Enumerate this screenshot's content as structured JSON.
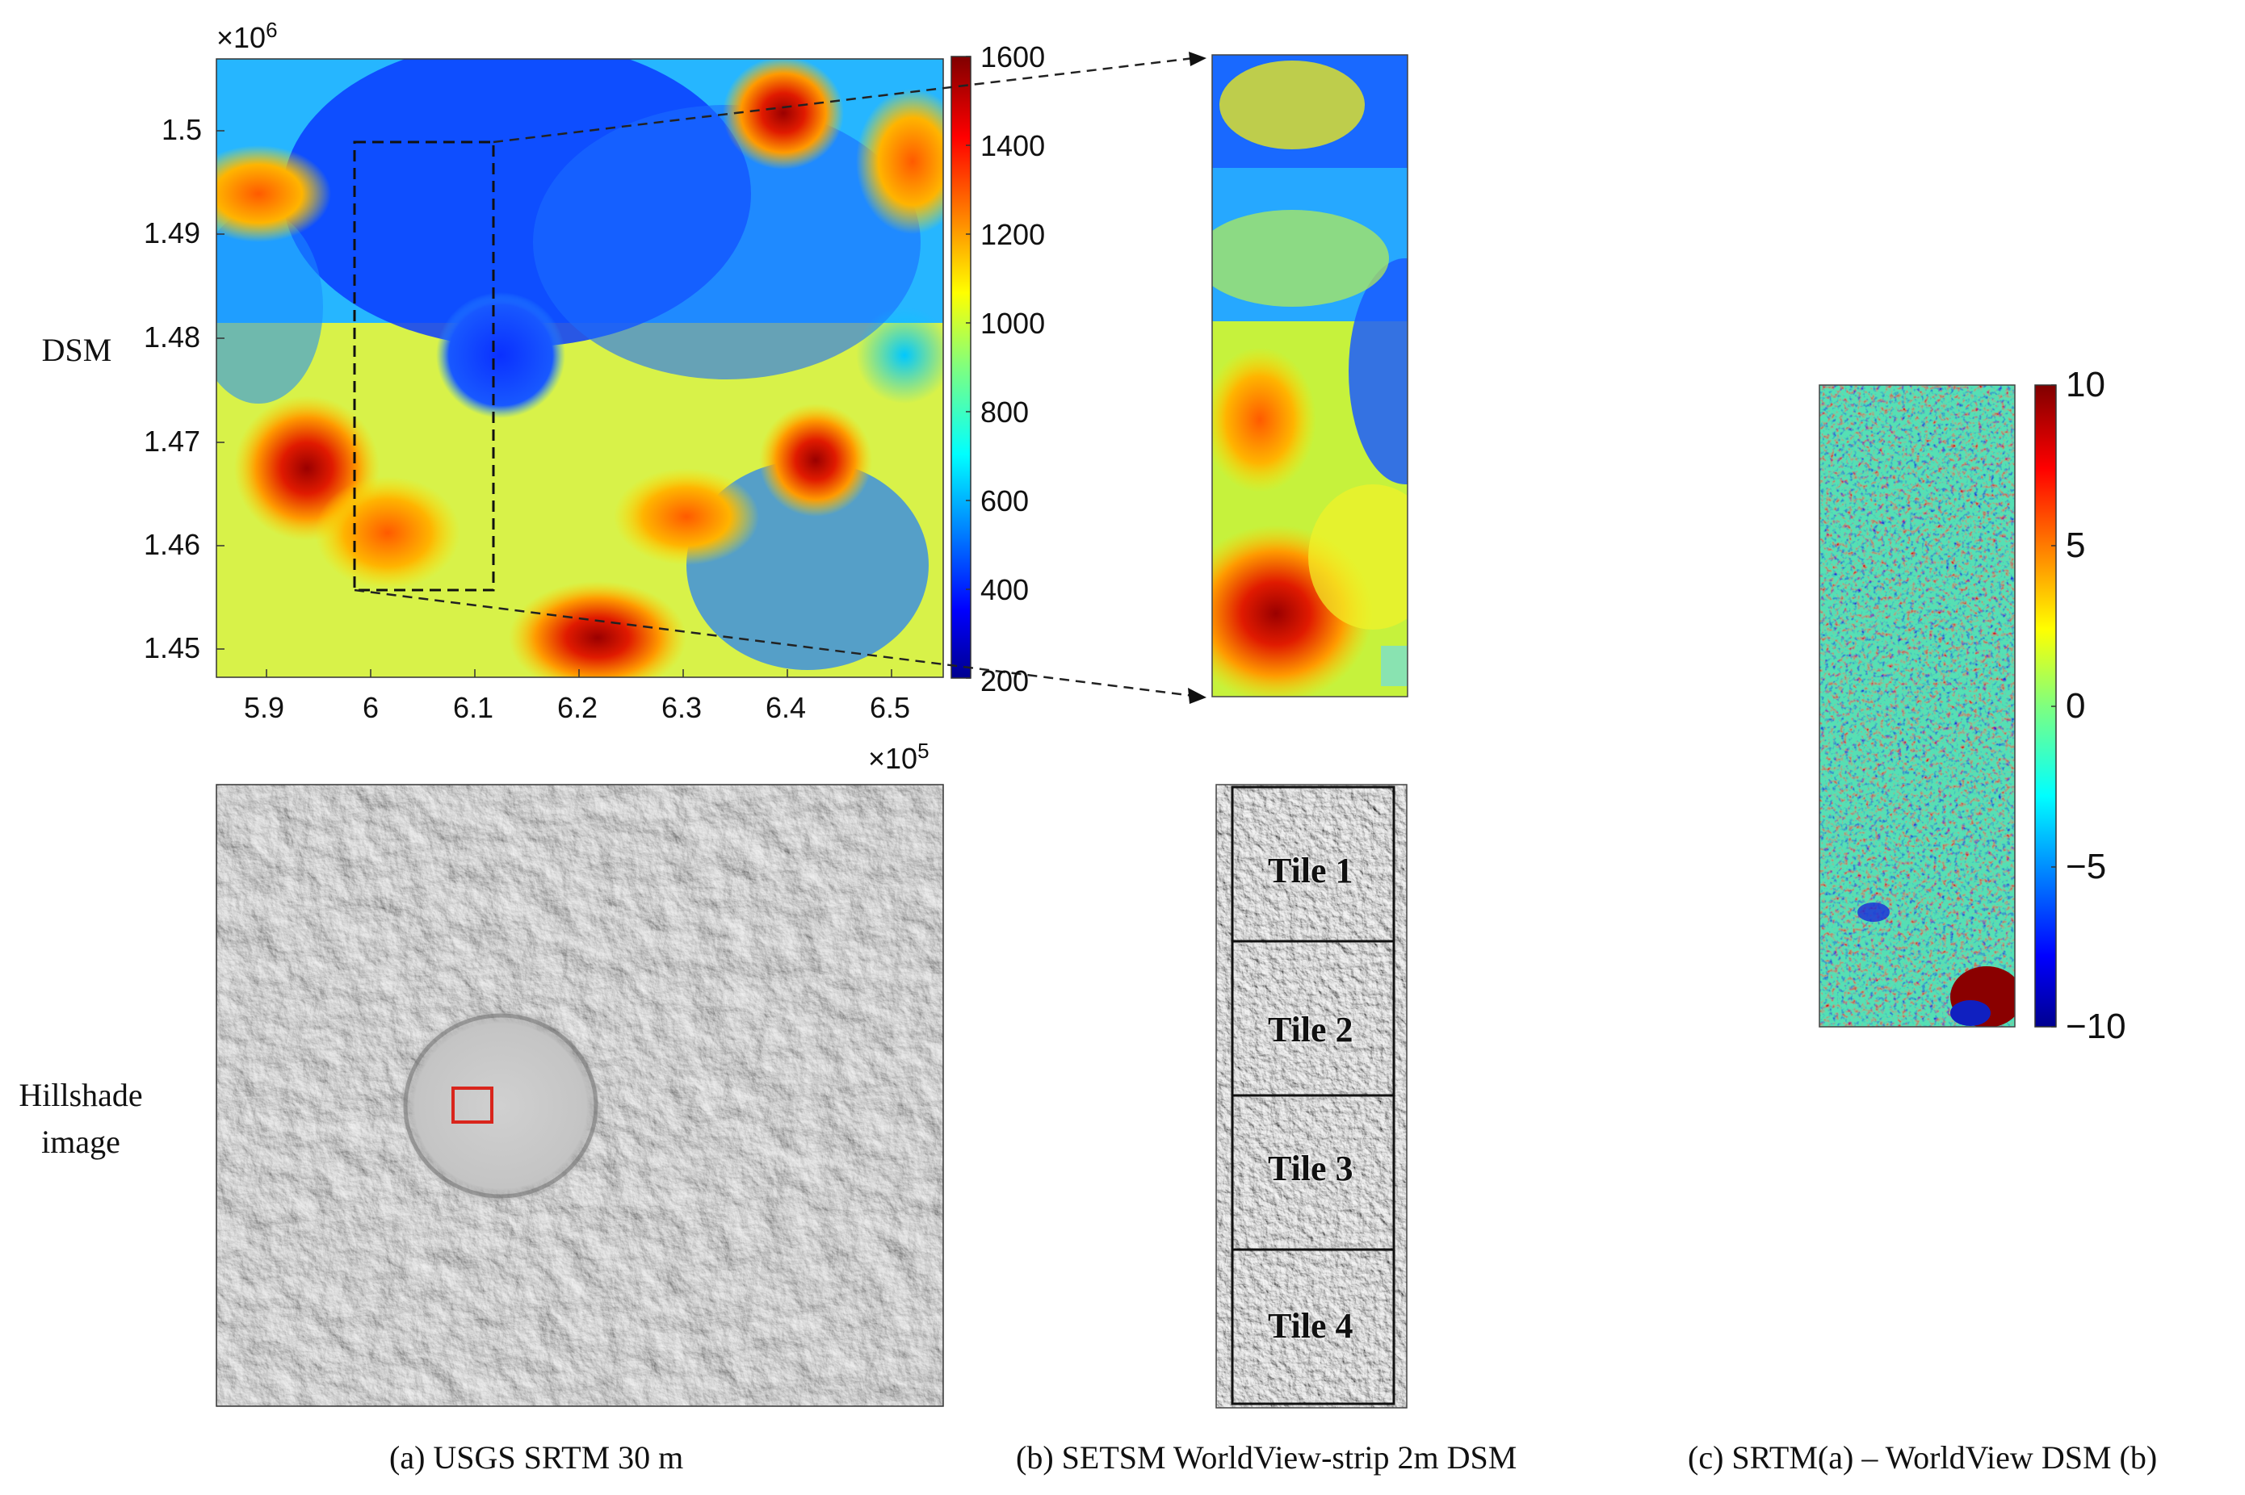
{
  "row_labels": {
    "dsm": "DSM",
    "hillshade_line1": "Hillshade",
    "hillshade_line2": "image"
  },
  "panel_a": {
    "caption": "(a) USGS SRTM 30 m",
    "y_exponent": "×10",
    "y_exponent_power": "6",
    "x_exponent": "×10",
    "x_exponent_power": "5",
    "y_ticks": [
      "1.5",
      "1.49",
      "1.48",
      "1.47",
      "1.46",
      "1.45"
    ],
    "x_ticks": [
      "5.9",
      "6",
      "6.1",
      "6.2",
      "6.3",
      "6.4",
      "6.5"
    ],
    "colorbar_ticks": [
      "1600",
      "1400",
      "1200",
      "1000",
      "800",
      "600",
      "400",
      "200"
    ],
    "colorbar_range": [
      200,
      1600
    ],
    "colorscale": "jet"
  },
  "panel_b": {
    "caption": "(b) SETSM WorldView-strip 2m DSM",
    "tiles": [
      "Tile 1",
      "Tile 2",
      "Tile 3",
      "Tile 4"
    ]
  },
  "panel_c": {
    "caption": "(c) SRTM(a) – WorldView DSM (b)",
    "colorbar_ticks": [
      "10",
      "5",
      "0",
      "−5",
      "−10"
    ],
    "colorbar_range": [
      -10,
      10
    ],
    "colorscale": "jet"
  },
  "colors": {
    "jet_low": "#00008f",
    "jet_mid": "#7fff7f",
    "jet_high": "#800000",
    "highlight_box": "#d9251c",
    "hillshade": "#b8b8b8"
  }
}
